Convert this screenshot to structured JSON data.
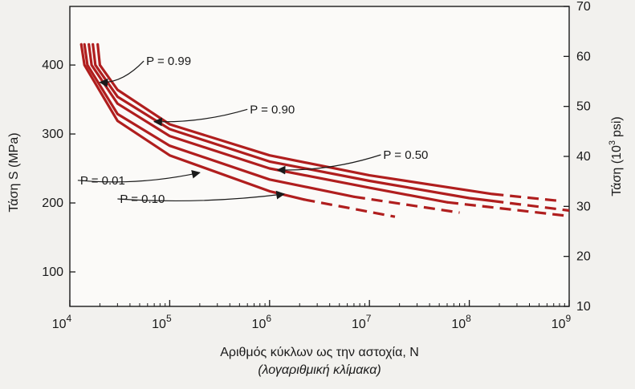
{
  "chart_data": {
    "type": "line",
    "x_scale": "log",
    "xlim": [
      10000,
      1000000000
    ],
    "ylim": [
      50,
      485
    ],
    "y2lim": [
      10,
      70
    ],
    "x_ticks": [
      10000,
      100000,
      1000000,
      10000000,
      100000000,
      1000000000
    ],
    "x_tick_labels": [
      {
        "base": "10",
        "exp": "4"
      },
      {
        "base": "10",
        "exp": "5"
      },
      {
        "base": "10",
        "exp": "6"
      },
      {
        "base": "10",
        "exp": "7"
      },
      {
        "base": "10",
        "exp": "8"
      },
      {
        "base": "10",
        "exp": "9"
      }
    ],
    "y_ticks": [
      100,
      200,
      300,
      400
    ],
    "y_tick_labels": [
      "100",
      "200",
      "300",
      "400"
    ],
    "y2_ticks": [
      10,
      20,
      30,
      40,
      50,
      60,
      70
    ],
    "y2_tick_labels": [
      "10",
      "20",
      "30",
      "40",
      "50",
      "60",
      "70"
    ],
    "xlabel": "Αριθμός κύκλων ως την αστοχία, N",
    "xlabel_sub": "(λογαριθμική κλίμακα)",
    "ylabel": "Τάση S (MPa)",
    "ylabel2": {
      "base": "Τάση (10",
      "exp": "3",
      "unit": "psi)"
    },
    "grid": false,
    "line_color": "#b01e1e",
    "series": [
      {
        "name": "P = 0.99",
        "solid": [
          [
            19000,
            430
          ],
          [
            20000,
            400
          ],
          [
            30000,
            364
          ],
          [
            100000,
            314
          ],
          [
            1000000,
            269
          ],
          [
            10000000,
            240
          ],
          [
            100000000,
            218
          ],
          [
            170000000,
            213
          ]
        ],
        "dashed": [
          [
            170000000,
            213
          ],
          [
            800000000,
            203
          ]
        ]
      },
      {
        "name": "P = 0.90",
        "solid": [
          [
            17000,
            430
          ],
          [
            18000,
            400
          ],
          [
            30000,
            354
          ],
          [
            100000,
            307
          ],
          [
            1000000,
            260
          ],
          [
            10000000,
            232
          ],
          [
            100000000,
            207
          ],
          [
            170000000,
            203
          ]
        ],
        "dashed": [
          [
            170000000,
            203
          ],
          [
            1000000000,
            189
          ]
        ]
      },
      {
        "name": "P = 0.50",
        "solid": [
          [
            15500,
            430
          ],
          [
            16500,
            400
          ],
          [
            30000,
            344
          ],
          [
            100000,
            297
          ],
          [
            1000000,
            250
          ],
          [
            10000000,
            222
          ],
          [
            60000000,
            201
          ]
        ],
        "dashed": [
          [
            60000000,
            201
          ],
          [
            1000000000,
            181
          ]
        ]
      },
      {
        "name": "P = 0.01",
        "solid": [
          [
            14000,
            430
          ],
          [
            15000,
            400
          ],
          [
            30000,
            329
          ],
          [
            100000,
            283
          ],
          [
            1000000,
            234
          ],
          [
            7000000,
            209
          ]
        ],
        "dashed": [
          [
            7000000,
            209
          ],
          [
            80000000,
            186
          ]
        ]
      },
      {
        "name": "P = 0.10",
        "solid": [
          [
            13000,
            430
          ],
          [
            14000,
            400
          ],
          [
            30000,
            319
          ],
          [
            100000,
            269
          ],
          [
            1000000,
            217
          ],
          [
            2200000,
            205
          ]
        ],
        "dashed": [
          [
            2200000,
            205
          ],
          [
            18000000,
            180
          ]
        ]
      }
    ],
    "annotations": [
      {
        "text": "P = 0.99",
        "label_at": [
          55000,
          400
        ],
        "arrow_to": [
          20000,
          375
        ]
      },
      {
        "text": "P = 0.90",
        "label_at": [
          600000,
          330
        ],
        "arrow_to": [
          70000,
          318
        ]
      },
      {
        "text": "P = 0.50",
        "label_at": [
          13000000,
          264
        ],
        "arrow_to": [
          1200000,
          248
        ]
      },
      {
        "text": "P = 0.01",
        "label_at": [
          12000,
          227
        ],
        "arrow_to": [
          200000,
          244
        ]
      },
      {
        "text": "P = 0.10",
        "label_at": [
          30000,
          200
        ],
        "arrow_to": [
          1400000,
          213
        ]
      }
    ]
  }
}
